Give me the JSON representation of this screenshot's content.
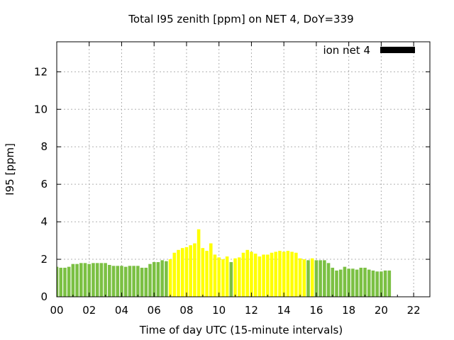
{
  "chart_data": {
    "type": "bar",
    "title": "Total I95 zenith [ppm] on NET 4, DoY=339",
    "xlabel": "Time of day UTC (15-minute intervals)",
    "ylabel": "I95 [ppm]",
    "xlim": [
      0,
      23
    ],
    "ylim": [
      0,
      13.6
    ],
    "x_ticks": [
      "00",
      "02",
      "04",
      "06",
      "08",
      "10",
      "12",
      "14",
      "16",
      "18",
      "20",
      "22"
    ],
    "y_ticks": [
      "0",
      "2",
      "4",
      "6",
      "8",
      "10",
      "12"
    ],
    "grid": true,
    "legend": {
      "position": "top-right",
      "label": "ion net 4",
      "color": "#000000"
    },
    "colors": {
      "low": "#7bc043",
      "high": "#ffff00"
    },
    "bar_interval_hours": 0.25,
    "values": [
      1.6,
      1.55,
      1.55,
      1.6,
      1.75,
      1.75,
      1.8,
      1.8,
      1.75,
      1.8,
      1.8,
      1.8,
      1.8,
      1.7,
      1.65,
      1.65,
      1.65,
      1.6,
      1.65,
      1.65,
      1.65,
      1.55,
      1.55,
      1.75,
      1.85,
      1.85,
      1.95,
      1.9,
      2.0,
      2.35,
      2.5,
      2.6,
      2.65,
      2.75,
      2.85,
      3.6,
      2.6,
      2.45,
      2.85,
      2.25,
      2.1,
      2.0,
      2.15,
      1.85,
      2.05,
      2.1,
      2.35,
      2.5,
      2.4,
      2.3,
      2.15,
      2.25,
      2.25,
      2.35,
      2.4,
      2.45,
      2.4,
      2.45,
      2.4,
      2.35,
      2.05,
      2.0,
      1.95,
      2.05,
      1.95,
      1.95,
      1.95,
      1.8,
      1.55,
      1.4,
      1.45,
      1.6,
      1.5,
      1.5,
      1.45,
      1.55,
      1.55,
      1.45,
      1.4,
      1.35,
      1.35,
      1.4,
      1.4
    ],
    "bar_colors": [
      "low",
      "low",
      "low",
      "low",
      "low",
      "low",
      "low",
      "low",
      "low",
      "low",
      "low",
      "low",
      "low",
      "low",
      "low",
      "low",
      "low",
      "low",
      "low",
      "low",
      "low",
      "low",
      "low",
      "low",
      "low",
      "low",
      "low",
      "low",
      "high",
      "high",
      "high",
      "high",
      "high",
      "high",
      "high",
      "high",
      "high",
      "high",
      "high",
      "high",
      "high",
      "high",
      "high",
      "low",
      "high",
      "high",
      "high",
      "high",
      "high",
      "high",
      "high",
      "high",
      "high",
      "high",
      "high",
      "high",
      "high",
      "high",
      "high",
      "high",
      "high",
      "high",
      "low",
      "high",
      "low",
      "low",
      "low",
      "low",
      "low",
      "low",
      "low",
      "low",
      "low",
      "low",
      "low",
      "low",
      "low",
      "low",
      "low",
      "low",
      "low",
      "low",
      "low"
    ]
  }
}
